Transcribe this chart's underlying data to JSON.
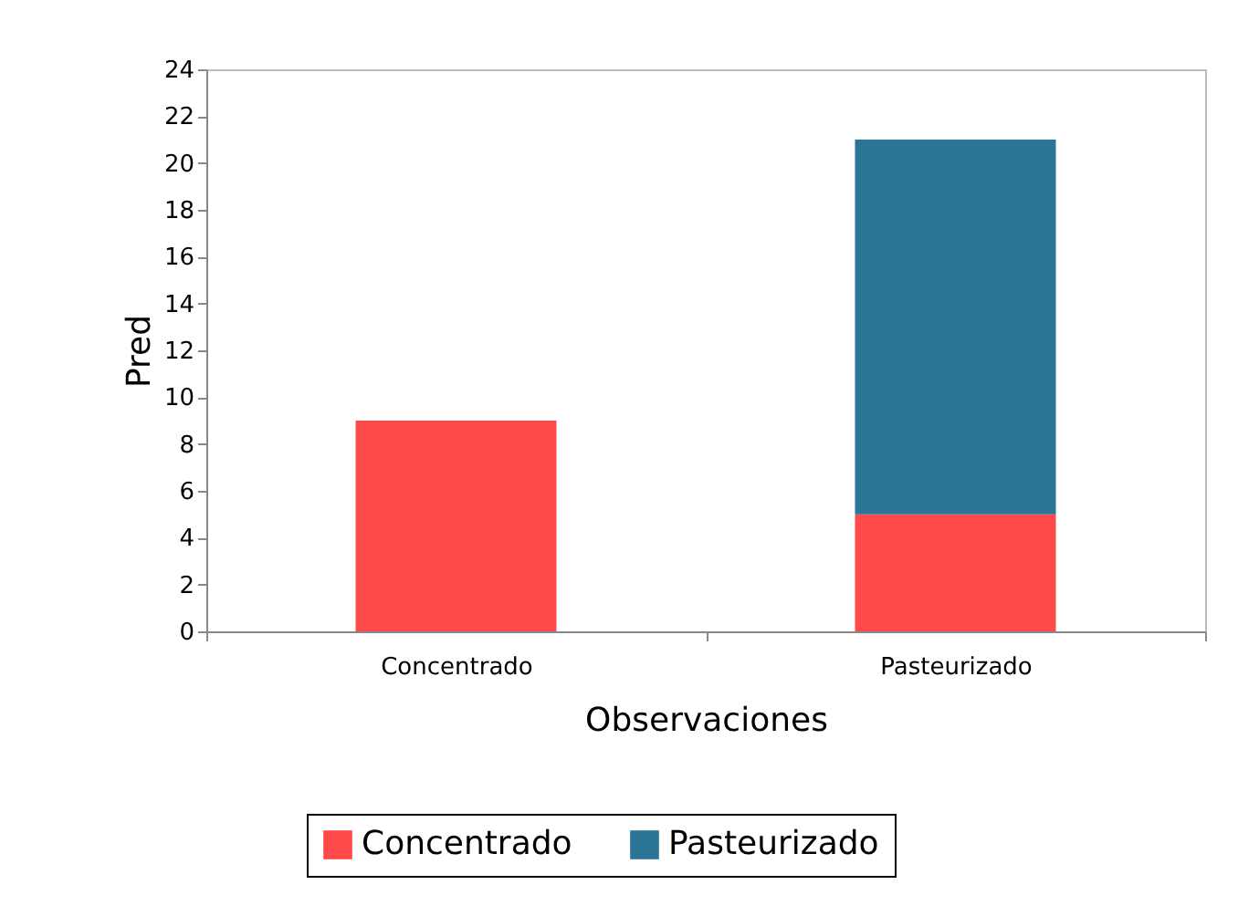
{
  "chart_data": {
    "type": "bar",
    "stacked": true,
    "xlabel": "Observaciones",
    "ylabel": "Pred",
    "categories": [
      "Concentrado",
      "Pasteurizado"
    ],
    "series": [
      {
        "name": "Concentrado",
        "color": "#ff4a4a",
        "values": [
          9,
          5
        ]
      },
      {
        "name": "Pasteurizado",
        "color": "#2b7597",
        "values": [
          null,
          16
        ]
      }
    ],
    "ylim": [
      0,
      24
    ],
    "yticks": [
      0,
      2,
      4,
      6,
      8,
      10,
      12,
      14,
      16,
      18,
      20,
      22,
      24
    ],
    "grid": false,
    "legend": "bottom"
  }
}
